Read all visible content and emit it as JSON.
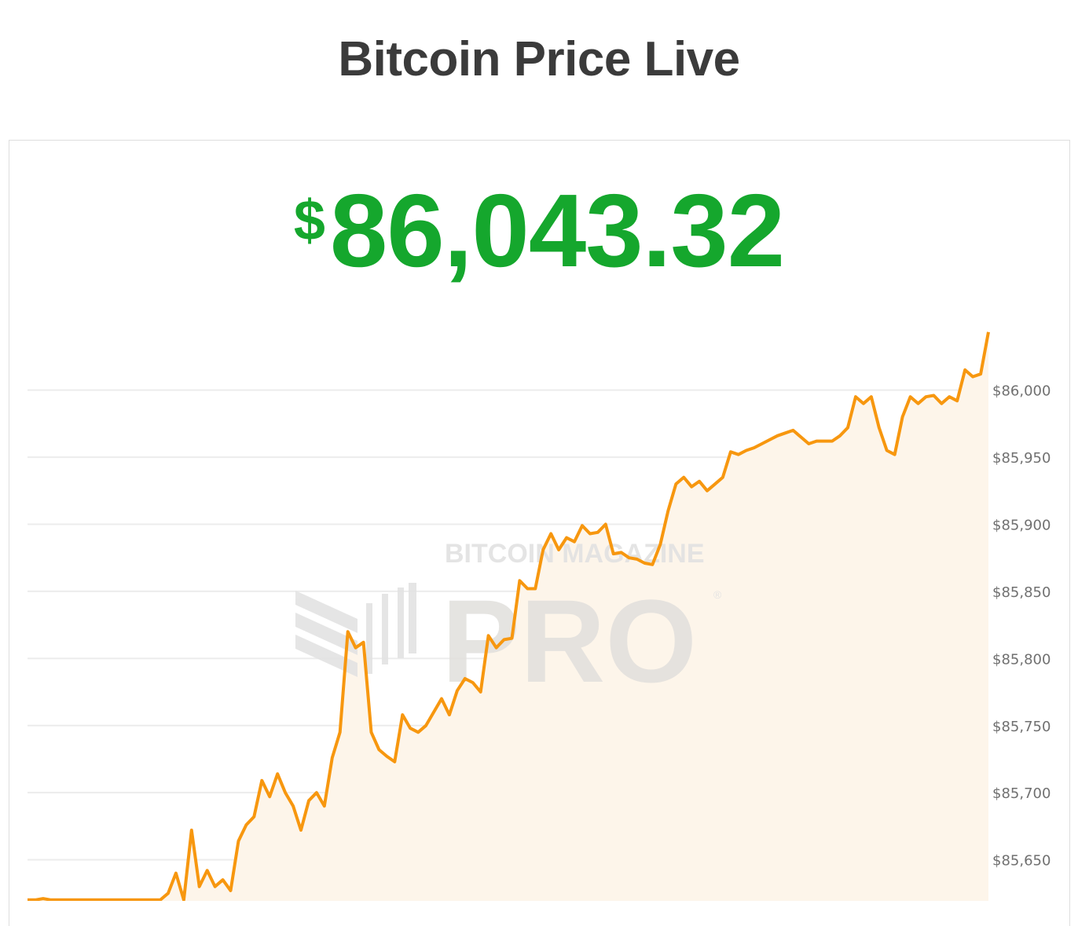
{
  "header": {
    "title": "Bitcoin Price Live"
  },
  "price": {
    "currency_symbol": "$",
    "value": "86,043.32",
    "color": "#15a72d"
  },
  "watermark": {
    "text_top": "BITCOIN MAGAZINE",
    "text_main": "PRO",
    "mark": "®"
  },
  "chart_data": {
    "type": "area",
    "title": "",
    "xlabel": "",
    "ylabel": "",
    "ylim": [
      85600,
      86080
    ],
    "y_ticks": [
      85650,
      85700,
      85750,
      85800,
      85850,
      85900,
      85950,
      86000
    ],
    "y_tick_labels": [
      "$85,650",
      "$85,700",
      "$85,750",
      "$85,800",
      "$85,850",
      "$85,900",
      "$85,950",
      "$86,000"
    ],
    "y_axis_position": "right",
    "grid": true,
    "line_color": "#f7970f",
    "fill_color": "#fdf5ea",
    "values": [
      85620,
      85620,
      85621,
      85620,
      85620,
      85620,
      85620,
      85620,
      85620,
      85620,
      85620,
      85620,
      85620,
      85620,
      85620,
      85620,
      85620,
      85620,
      85625,
      85640,
      85620,
      85672,
      85630,
      85642,
      85630,
      85635,
      85627,
      85664,
      85676,
      85682,
      85709,
      85697,
      85714,
      85700,
      85690,
      85672,
      85694,
      85700,
      85690,
      85726,
      85745,
      85820,
      85808,
      85812,
      85745,
      85732,
      85727,
      85723,
      85758,
      85748,
      85745,
      85750,
      85760,
      85770,
      85758,
      85776,
      85785,
      85782,
      85775,
      85817,
      85808,
      85814,
      85815,
      85858,
      85852,
      85852,
      85881,
      85893,
      85881,
      85890,
      85887,
      85899,
      85893,
      85894,
      85900,
      85878,
      85879,
      85875,
      85874,
      85871,
      85870,
      85885,
      85910,
      85930,
      85935,
      85928,
      85932,
      85925,
      85930,
      85935,
      85954,
      85952,
      85955,
      85957,
      85960,
      85963,
      85966,
      85968,
      85970,
      85965,
      85960,
      85962,
      85962,
      85962,
      85966,
      85972,
      85995,
      85990,
      85995,
      85972,
      85955,
      85952,
      85980,
      85995,
      85990,
      85995,
      85996,
      85990,
      85995,
      85992,
      86015,
      86010,
      86012,
      86043.32
    ]
  }
}
